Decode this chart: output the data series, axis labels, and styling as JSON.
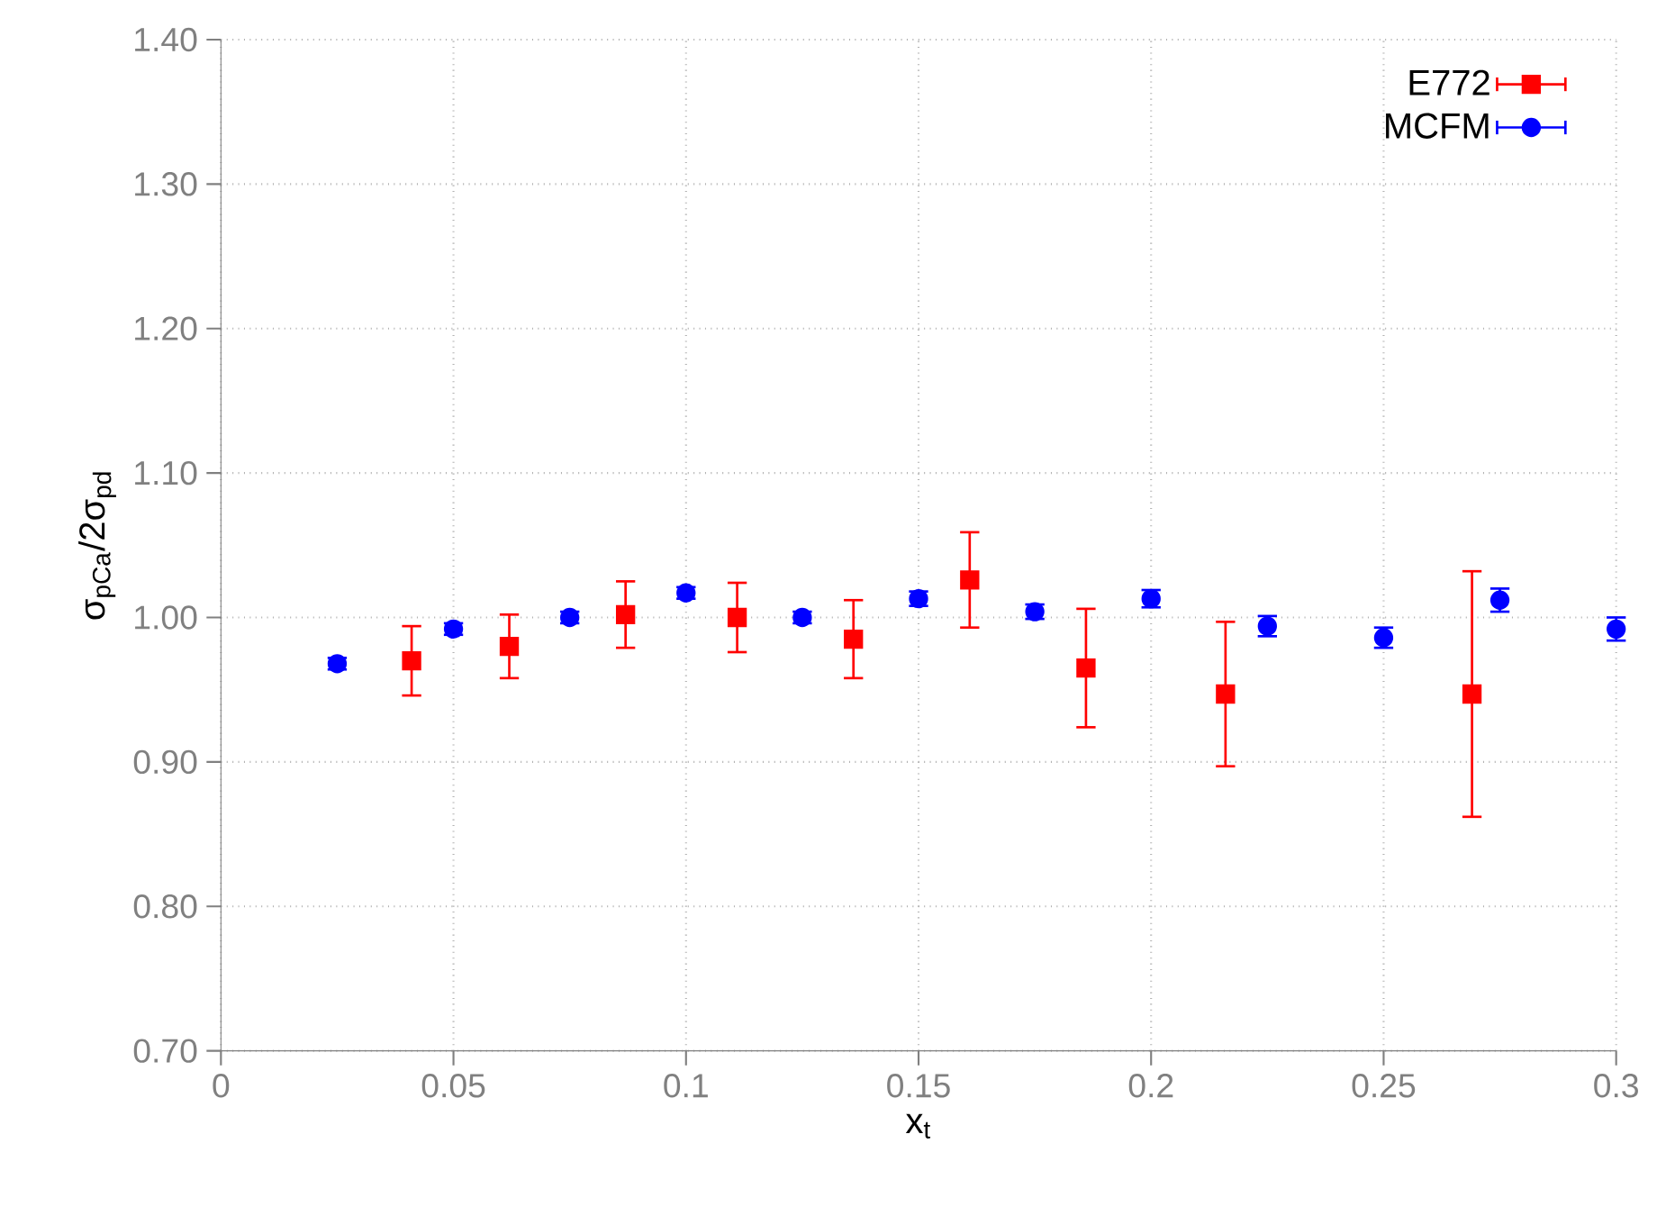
{
  "chart_data": {
    "type": "scatter",
    "xlabel": "x$_{t}$",
    "ylabel": "σ$_{pCa}$/2σ$_{pd}$",
    "xlim": [
      0,
      0.3
    ],
    "ylim": [
      0.7,
      1.4
    ],
    "xticks": [
      0,
      0.05,
      0.1,
      0.15,
      0.2,
      0.25,
      0.3
    ],
    "yticks": [
      {
        "value": 0.7,
        "label": "0.70"
      },
      {
        "value": 0.8,
        "label": "0.80"
      },
      {
        "value": 0.9,
        "label": "0.90"
      },
      {
        "value": 1.0,
        "label": "1.00"
      },
      {
        "value": 1.1,
        "label": "1.10"
      },
      {
        "value": 1.2,
        "label": "1.20"
      },
      {
        "value": 1.3,
        "label": "1.30"
      },
      {
        "value": 1.4,
        "label": "1.40"
      }
    ],
    "grid": true,
    "legend": "top right",
    "series": [
      {
        "name": "E772",
        "color": "#ff0000",
        "marker": "square",
        "x": [
          0.041,
          0.062,
          0.087,
          0.111,
          0.136,
          0.161,
          0.186,
          0.216,
          0.269
        ],
        "values": [
          0.97,
          0.98,
          1.002,
          1.0,
          0.985,
          1.026,
          0.965,
          0.947,
          0.947
        ],
        "errors": [
          0.024,
          0.022,
          0.023,
          0.024,
          0.027,
          0.033,
          0.041,
          0.05,
          0.085
        ]
      },
      {
        "name": "MCFM",
        "color": "#0000ff",
        "marker": "circle",
        "x": [
          0.025,
          0.05,
          0.075,
          0.1,
          0.125,
          0.15,
          0.175,
          0.2,
          0.225,
          0.25,
          0.275,
          0.3
        ],
        "values": [
          0.968,
          0.992,
          1.0,
          1.017,
          1.0,
          1.013,
          1.004,
          1.013,
          0.994,
          0.986,
          1.012,
          0.992
        ],
        "errors": [
          0.004,
          0.004,
          0.004,
          0.004,
          0.004,
          0.005,
          0.005,
          0.006,
          0.007,
          0.007,
          0.008,
          0.008
        ]
      }
    ]
  }
}
